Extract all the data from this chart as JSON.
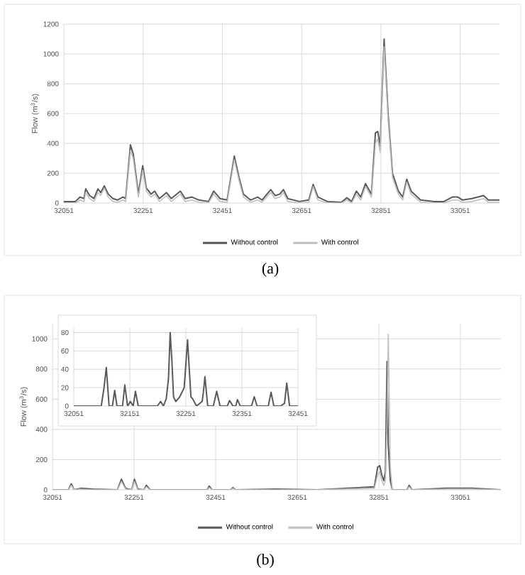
{
  "chart_data": [
    {
      "type": "line",
      "ylabel": "Flow (m$^{3}$/s)",
      "annotations": [
        "(a)"
      ],
      "xlim": [
        32051,
        33150
      ],
      "ylim": [
        0,
        1200
      ],
      "xticks": [
        32051,
        32251,
        32451,
        32651,
        32851,
        33051
      ],
      "yticks": [
        0,
        200,
        400,
        600,
        800,
        1000,
        1200
      ],
      "grid": true,
      "legend": "bottom",
      "x": [
        32051,
        32080,
        32092,
        32102,
        32106,
        32116,
        32127,
        32137,
        32144,
        32153,
        32163,
        32175,
        32186,
        32200,
        32207,
        32219,
        32226,
        32239,
        32250,
        32259,
        32271,
        32280,
        32292,
        32310,
        32322,
        32345,
        32357,
        32374,
        32392,
        32416,
        32429,
        32445,
        32463,
        32481,
        32493,
        32504,
        32522,
        32540,
        32551,
        32573,
        32584,
        32596,
        32605,
        32616,
        32645,
        32669,
        32680,
        32692,
        32716,
        32751,
        32765,
        32777,
        32789,
        32800,
        32812,
        32827,
        32837,
        32843,
        32849,
        32859,
        32869,
        32880,
        32895,
        32906,
        32916,
        32927,
        32951,
        32986,
        33010,
        33031,
        33045,
        33057,
        33080,
        33110,
        33122,
        33150
      ],
      "series": [
        {
          "name": "Without control",
          "color": "#595959",
          "values": [
            10,
            10,
            40,
            30,
            95,
            50,
            30,
            95,
            70,
            115,
            60,
            30,
            20,
            40,
            30,
            390,
            330,
            60,
            250,
            100,
            60,
            80,
            30,
            70,
            30,
            80,
            30,
            40,
            20,
            10,
            80,
            30,
            20,
            315,
            170,
            60,
            20,
            40,
            20,
            90,
            50,
            60,
            90,
            30,
            10,
            20,
            125,
            40,
            10,
            5,
            35,
            10,
            80,
            40,
            130,
            60,
            470,
            480,
            380,
            1100,
            600,
            200,
            80,
            40,
            160,
            80,
            20,
            10,
            10,
            40,
            40,
            20,
            30,
            50,
            20,
            20
          ]
        },
        {
          "name": "With control",
          "color": "#bfbfbf",
          "values": [
            0,
            0,
            20,
            10,
            70,
            30,
            10,
            70,
            50,
            100,
            40,
            10,
            5,
            20,
            10,
            350,
            300,
            40,
            220,
            80,
            40,
            60,
            10,
            50,
            10,
            60,
            10,
            20,
            5,
            0,
            60,
            10,
            5,
            290,
            150,
            40,
            5,
            20,
            5,
            70,
            30,
            40,
            70,
            10,
            0,
            5,
            110,
            20,
            0,
            0,
            20,
            0,
            60,
            20,
            110,
            40,
            400,
            430,
            340,
            1050,
            560,
            170,
            60,
            20,
            140,
            60,
            5,
            0,
            0,
            20,
            20,
            5,
            10,
            30,
            5,
            5
          ]
        }
      ]
    },
    {
      "type": "line",
      "ylabel": "Flow (m$^{3}$/s)",
      "annotations": [
        "(b)"
      ],
      "xlim": [
        32051,
        33150
      ],
      "ylim": [
        0,
        1100
      ],
      "xticks": [
        32051,
        32251,
        32451,
        32651,
        32851,
        33051
      ],
      "yticks": [
        0,
        200,
        400,
        600,
        800,
        1000
      ],
      "grid": true,
      "legend": "bottom",
      "x": [
        32051,
        32090,
        32097,
        32104,
        32120,
        32150,
        32210,
        32220,
        32230,
        32245,
        32252,
        32260,
        32275,
        32281,
        32290,
        32430,
        32435,
        32442,
        32488,
        32493,
        32500,
        32600,
        32700,
        32840,
        32848,
        32853,
        32858,
        32863,
        32867,
        32871,
        32874,
        32879,
        32884,
        32920,
        32925,
        32932,
        33016,
        33080,
        33150
      ],
      "series": [
        {
          "name": "Without control",
          "color": "#595959",
          "values": [
            0,
            0,
            40,
            0,
            10,
            5,
            0,
            70,
            10,
            0,
            70,
            5,
            0,
            30,
            0,
            0,
            25,
            0,
            0,
            15,
            0,
            5,
            0,
            20,
            150,
            160,
            100,
            60,
            120,
            850,
            300,
            60,
            0,
            0,
            30,
            0,
            10,
            10,
            0
          ]
        },
        {
          "name": "With control",
          "color": "#bfbfbf",
          "values": [
            0,
            0,
            30,
            0,
            5,
            0,
            0,
            55,
            5,
            0,
            55,
            0,
            0,
            20,
            0,
            0,
            15,
            0,
            0,
            10,
            0,
            0,
            0,
            10,
            100,
            120,
            60,
            30,
            60,
            450,
            1030,
            150,
            0,
            0,
            20,
            0,
            5,
            5,
            0
          ]
        }
      ]
    },
    {
      "type": "line",
      "xlim": [
        32051,
        32451
      ],
      "ylim": [
        0,
        85
      ],
      "xticks": [
        32051,
        32151,
        32251,
        32351,
        32451
      ],
      "yticks": [
        0,
        20,
        40,
        60,
        80
      ],
      "grid": true,
      "x": [
        32051,
        32100,
        32105,
        32109,
        32114,
        32120,
        32124,
        32128,
        32138,
        32142,
        32147,
        32152,
        32157,
        32161,
        32166,
        32200,
        32206,
        32211,
        32216,
        32220,
        32223,
        32226,
        32229,
        32233,
        32240,
        32248,
        32254,
        32260,
        32263,
        32270,
        32280,
        32282,
        32285,
        32290,
        32300,
        32306,
        32312,
        32325,
        32329,
        32335,
        32340,
        32343,
        32348,
        32368,
        32373,
        32378,
        32398,
        32403,
        32408,
        32420,
        32427,
        32431,
        32436,
        32451
      ],
      "series": [
        {
          "color": "#595959",
          "values": [
            0,
            0,
            20,
            42,
            0,
            0,
            17,
            0,
            0,
            23,
            0,
            5,
            0,
            16,
            0,
            0,
            5,
            0,
            8,
            30,
            80,
            50,
            10,
            5,
            10,
            20,
            72,
            10,
            8,
            0,
            5,
            14,
            32,
            0,
            0,
            16,
            0,
            0,
            6,
            0,
            0,
            7,
            0,
            0,
            10,
            0,
            0,
            15,
            0,
            0,
            3,
            25,
            0,
            0
          ]
        }
      ]
    }
  ]
}
